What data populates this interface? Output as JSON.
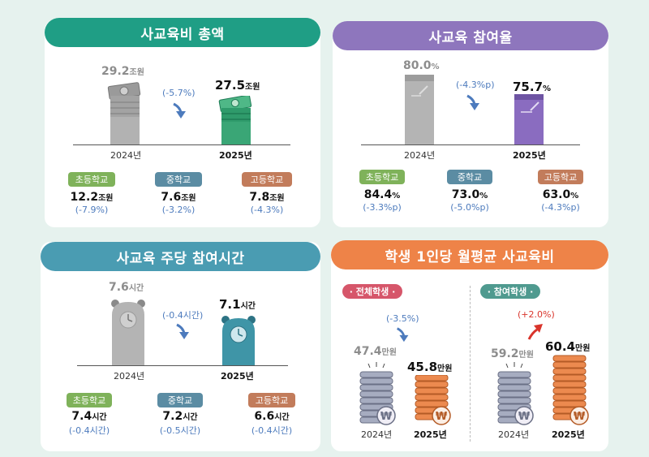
{
  "colors": {
    "green": "#1f9e85",
    "purple": "#8e76bd",
    "teal": "#4a9cb2",
    "orange": "#ee8348",
    "elem": "#7fb25a",
    "middle": "#5b8ca3",
    "high": "#c27c5b"
  },
  "spending": {
    "title": "사교육비 총액",
    "y2024": "2024년",
    "y2025": "2025년",
    "v2024": "29.2",
    "u2024": "조원",
    "v2025": "27.5",
    "u2025": "조원",
    "change": "(-5.7%)",
    "levels": [
      {
        "label": "초등학교",
        "value": "12.2",
        "unit": "조원",
        "change": "(-7.9%)"
      },
      {
        "label": "중학교",
        "value": "7.6",
        "unit": "조원",
        "change": "(-3.2%)"
      },
      {
        "label": "고등학교",
        "value": "7.8",
        "unit": "조원",
        "change": "(-4.3%)"
      }
    ]
  },
  "participation": {
    "title": "사교육 참여율",
    "y2024": "2024년",
    "y2025": "2025년",
    "v2024": "80.0",
    "u2024": "%",
    "v2025": "75.7",
    "u2025": "%",
    "change": "(-4.3%p)",
    "levels": [
      {
        "label": "초등학교",
        "value": "84.4",
        "unit": "%",
        "change": "(-3.3%p)"
      },
      {
        "label": "중학교",
        "value": "73.0",
        "unit": "%",
        "change": "(-5.0%p)"
      },
      {
        "label": "고등학교",
        "value": "63.0",
        "unit": "%",
        "change": "(-4.3%p)"
      }
    ]
  },
  "hours": {
    "title": "사교육 주당 참여시간",
    "y2024": "2024년",
    "y2025": "2025년",
    "v2024": "7.6",
    "u2024": "시간",
    "v2025": "7.1",
    "u2025": "시간",
    "change": "(-0.4시간)",
    "levels": [
      {
        "label": "초등학교",
        "value": "7.4",
        "unit": "시간",
        "change": "(-0.4시간)"
      },
      {
        "label": "중학교",
        "value": "7.2",
        "unit": "시간",
        "change": "(-0.5시간)"
      },
      {
        "label": "고등학교",
        "value": "6.6",
        "unit": "시간",
        "change": "(-0.4시간)"
      }
    ]
  },
  "per_student": {
    "title": "학생 1인당 월평균 사교육비",
    "all": {
      "tag": "· 전체학생 ·",
      "v2024": "47.4",
      "v2025": "45.8",
      "unit": "만원",
      "change": "(-3.5%)",
      "y2024": "2024년",
      "y2025": "2025년"
    },
    "participants": {
      "tag": "· 참여학생 ·",
      "v2024": "59.2",
      "v2025": "60.4",
      "unit": "만원",
      "change": "(+2.0%)",
      "y2024": "2024년",
      "y2025": "2025년"
    },
    "coin_symbol": "₩"
  },
  "chart_data": [
    {
      "type": "bar",
      "title": "사교육비 총액",
      "categories": [
        "2024년",
        "2025년"
      ],
      "values": [
        29.2,
        27.5
      ],
      "unit": "조원",
      "change": "-5.7%",
      "breakdown": {
        "categories": [
          "초등학교",
          "중학교",
          "고등학교"
        ],
        "values": [
          12.2,
          7.6,
          7.8
        ],
        "changes": [
          "-7.9%",
          "-3.2%",
          "-4.3%"
        ]
      }
    },
    {
      "type": "bar",
      "title": "사교육 참여율",
      "categories": [
        "2024년",
        "2025년"
      ],
      "values": [
        80.0,
        75.7
      ],
      "unit": "%",
      "change": "-4.3%p",
      "breakdown": {
        "categories": [
          "초등학교",
          "중학교",
          "고등학교"
        ],
        "values": [
          84.4,
          73.0,
          63.0
        ],
        "changes": [
          "-3.3%p",
          "-5.0%p",
          "-4.3%p"
        ]
      }
    },
    {
      "type": "bar",
      "title": "사교육 주당 참여시간",
      "categories": [
        "2024년",
        "2025년"
      ],
      "values": [
        7.6,
        7.1
      ],
      "unit": "시간",
      "change": "-0.4시간",
      "breakdown": {
        "categories": [
          "초등학교",
          "중학교",
          "고등학교"
        ],
        "values": [
          7.4,
          7.2,
          6.6
        ],
        "changes": [
          "-0.4시간",
          "-0.5시간",
          "-0.4시간"
        ]
      }
    },
    {
      "type": "bar",
      "title": "학생 1인당 월평균 사교육비",
      "categories": [
        "2024년",
        "2025년"
      ],
      "unit": "만원",
      "series": [
        {
          "name": "전체학생",
          "values": [
            47.4,
            45.8
          ],
          "change": "-3.5%"
        },
        {
          "name": "참여학생",
          "values": [
            59.2,
            60.4
          ],
          "change": "+2.0%"
        }
      ]
    }
  ]
}
